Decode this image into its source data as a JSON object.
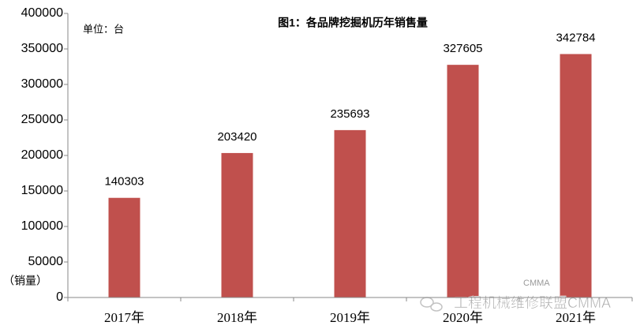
{
  "chart_data": {
    "type": "bar",
    "title": "图1：各品牌挖掘机历年销售量",
    "unit_note": "单位：台",
    "y_label": "（销量）",
    "categories": [
      "2017年",
      "2018年",
      "2019年",
      "2020年",
      "2021年"
    ],
    "values": [
      140303,
      203420,
      235693,
      327605,
      342784
    ],
    "color": "#c0504d",
    "ylim": [
      0,
      400000
    ],
    "yticks": [
      0,
      50000,
      100000,
      150000,
      200000,
      250000,
      300000,
      350000,
      400000
    ],
    "watermark": "CMMA",
    "watermark_source": "工程机械维修联盟CMMA"
  }
}
